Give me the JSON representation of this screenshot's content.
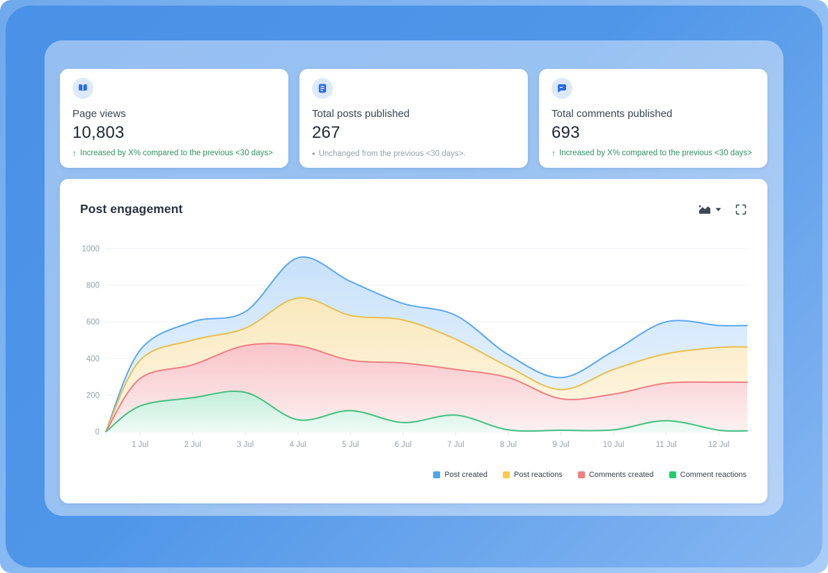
{
  "colors": {
    "accent_blue": "#2A6BE8",
    "icon_circle_bg": "#DCEAFB",
    "positive_green": "#2E9362",
    "neutral_gray": "#97A0AB",
    "background_blue_top": "#4A91E7",
    "background_blue_bottom": "#86B6F1",
    "card_bg": "#FFFFFF"
  },
  "stat_cards": [
    {
      "icon": "book-open",
      "label": "Page views",
      "value": "10,803",
      "delta": {
        "indicator": "up-arrow",
        "symbol": "↑",
        "text": "Increased by X% compared to the previous <30 days>"
      }
    },
    {
      "icon": "document",
      "label": "Total posts published",
      "value": "267",
      "delta": {
        "indicator": "dot",
        "symbol": "•",
        "text": "Unchanged from the previous <30 days>."
      }
    },
    {
      "icon": "chat-bubble",
      "label": "Total comments published",
      "value": "693",
      "delta": {
        "indicator": "up-arrow",
        "symbol": "↑",
        "text": "Increased by X% compared to the previous <30 days>"
      }
    }
  ],
  "chart_card": {
    "title": "Post engagement",
    "controls": [
      "area-chart-type-selector",
      "fullscreen-toggle"
    ]
  },
  "chart_data": {
    "type": "area",
    "overlapping": true,
    "title": "Post engagement",
    "categories": [
      "1 Jul",
      "2 Jul",
      "3 Jul",
      "4 Jul",
      "5 Jul",
      "6 Jul",
      "7 Jul",
      "8 Jul",
      "9 Jul",
      "10 Jul",
      "11 Jul",
      "12 Jul"
    ],
    "series": [
      {
        "name": "Post created",
        "color": "#4BA7EE",
        "line": "#5AA7F0",
        "fill_top": "#C7E1FA",
        "fill_bottom": "#EFF7FE",
        "values": [
          445,
          600,
          655,
          950,
          820,
          700,
          635,
          420,
          295,
          440,
          600,
          580
        ],
        "edge": 580
      },
      {
        "name": "Post reactions",
        "color": "#F8CC4A",
        "line": "#E9BE4E",
        "fill_top": "#FAE8BC",
        "fill_bottom": "#FEF8E8",
        "values": [
          390,
          500,
          565,
          730,
          635,
          610,
          505,
          355,
          230,
          340,
          425,
          460
        ],
        "edge": 462
      },
      {
        "name": "Comments created",
        "color": "#F57E7E",
        "line": "#EF7E82",
        "fill_top": "#F8C4C8",
        "fill_bottom": "#FDF1F1",
        "values": [
          290,
          365,
          470,
          470,
          390,
          375,
          340,
          295,
          180,
          205,
          265,
          270
        ],
        "edge": 270
      },
      {
        "name": "Comment reactions",
        "color": "#20CE6E",
        "line": "#42BF82",
        "fill_top": "#C2EED9",
        "fill_bottom": "#EFFBF5",
        "values": [
          140,
          185,
          215,
          65,
          115,
          50,
          90,
          10,
          8,
          10,
          60,
          8
        ],
        "edge": 5
      }
    ],
    "ylim": [
      0,
      1000
    ],
    "yticks": [
      0,
      200,
      400,
      600,
      800,
      1000
    ],
    "grid": "horizontal",
    "legend_position": "bottom-right"
  }
}
